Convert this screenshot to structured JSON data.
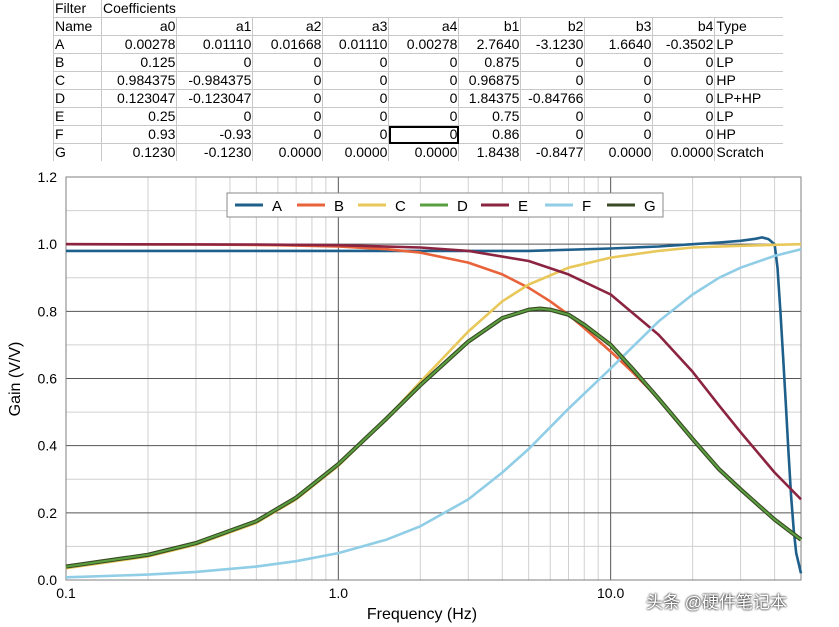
{
  "table": {
    "header_row1": [
      "Filter",
      "Coefficients",
      "",
      "",
      "",
      "",
      "",
      "",
      "",
      "",
      ""
    ],
    "header_row2": [
      "Name",
      "a0",
      "a1",
      "a2",
      "a3",
      "a4",
      "b1",
      "b2",
      "b3",
      "b4",
      "Type"
    ],
    "rows": [
      [
        "A",
        "0.00278",
        "0.01110",
        "0.01668",
        "0.01110",
        "0.00278",
        "2.7640",
        "-3.1230",
        "1.6640",
        "-0.3502",
        "LP"
      ],
      [
        "B",
        "0.125",
        "0",
        "0",
        "0",
        "0",
        "0.875",
        "0",
        "0",
        "0",
        "LP"
      ],
      [
        "C",
        "0.984375",
        "-0.984375",
        "0",
        "0",
        "0",
        "0.96875",
        "0",
        "0",
        "0",
        "HP"
      ],
      [
        "D",
        "0.123047",
        "-0.123047",
        "0",
        "0",
        "0",
        "1.84375",
        "-0.84766",
        "0",
        "0",
        "LP+HP"
      ],
      [
        "E",
        "0.25",
        "0",
        "0",
        "0",
        "0",
        "0.75",
        "0",
        "0",
        "0",
        "LP"
      ],
      [
        "F",
        "0.93",
        "-0.93",
        "0",
        "0",
        "0",
        "0.86",
        "0",
        "0",
        "0",
        "HP"
      ],
      [
        "G",
        "0.1230",
        "-0.1230",
        "0.0000",
        "0.0000",
        "0.0000",
        "1.8438",
        "-0.8477",
        "0.0000",
        "0.0000",
        "Scratch"
      ]
    ]
  },
  "chart_data": {
    "type": "line",
    "xlabel": "Frequency (Hz)",
    "ylabel": "Gain (V/V)",
    "xscale": "log",
    "xlim": [
      0.1,
      50
    ],
    "ylim": [
      0,
      1.2
    ],
    "x_ticks": [
      "0.1",
      "1.0",
      "10.0"
    ],
    "y_ticks": [
      "0.0",
      "0.2",
      "0.4",
      "0.6",
      "0.8",
      "1.0",
      "1.2"
    ],
    "grid": true,
    "legend_position": "top-center",
    "series": [
      {
        "name": "A",
        "color": "#1f5f8b",
        "x": [
          0.1,
          0.5,
          1,
          2,
          5,
          10,
          15,
          20,
          25,
          30,
          34,
          36,
          38,
          40,
          41,
          42,
          43,
          44,
          45,
          46,
          47,
          48,
          50
        ],
        "y": [
          0.98,
          0.98,
          0.98,
          0.98,
          0.98,
          0.987,
          0.993,
          1.0,
          1.005,
          1.01,
          1.016,
          1.02,
          1.015,
          1.0,
          0.93,
          0.8,
          0.66,
          0.52,
          0.38,
          0.25,
          0.15,
          0.08,
          0.02
        ]
      },
      {
        "name": "B",
        "color": "#e8623a",
        "x": [
          0.1,
          0.3,
          0.6,
          1,
          1.5,
          2,
          3,
          4,
          5,
          6,
          7,
          8,
          10,
          12,
          15,
          20,
          25,
          30,
          40,
          50
        ],
        "y": [
          1.0,
          0.999,
          0.997,
          0.993,
          0.985,
          0.975,
          0.945,
          0.91,
          0.87,
          0.83,
          0.79,
          0.75,
          0.68,
          0.62,
          0.54,
          0.42,
          0.33,
          0.27,
          0.18,
          0.12
        ]
      },
      {
        "name": "C",
        "color": "#e8c85a",
        "x": [
          0.1,
          0.2,
          0.3,
          0.5,
          0.7,
          1,
          1.5,
          2,
          3,
          4,
          5,
          7,
          10,
          15,
          20,
          30,
          50
        ],
        "y": [
          0.035,
          0.07,
          0.105,
          0.17,
          0.24,
          0.34,
          0.48,
          0.59,
          0.74,
          0.83,
          0.88,
          0.93,
          0.96,
          0.98,
          0.99,
          0.995,
          1.0
        ]
      },
      {
        "name": "D",
        "color": "#5aa040",
        "x": [
          0.1,
          0.2,
          0.3,
          0.5,
          0.7,
          1,
          1.5,
          2,
          3,
          4,
          5,
          5.5,
          6,
          7,
          8,
          10,
          12,
          15,
          20,
          25,
          30,
          40,
          50
        ],
        "y": [
          0.04,
          0.075,
          0.11,
          0.175,
          0.245,
          0.345,
          0.48,
          0.58,
          0.71,
          0.78,
          0.805,
          0.808,
          0.805,
          0.79,
          0.76,
          0.7,
          0.63,
          0.54,
          0.42,
          0.33,
          0.27,
          0.18,
          0.12
        ]
      },
      {
        "name": "E",
        "color": "#8b2440",
        "x": [
          0.1,
          0.5,
          1,
          2,
          3,
          5,
          7,
          10,
          15,
          20,
          25,
          30,
          40,
          50
        ],
        "y": [
          1.0,
          0.999,
          0.997,
          0.99,
          0.98,
          0.95,
          0.91,
          0.85,
          0.73,
          0.62,
          0.52,
          0.44,
          0.32,
          0.24
        ]
      },
      {
        "name": "F",
        "color": "#90cde6",
        "x": [
          0.1,
          0.2,
          0.3,
          0.5,
          0.7,
          1,
          1.5,
          2,
          3,
          4,
          5,
          7,
          10,
          15,
          20,
          25,
          30,
          40,
          50
        ],
        "y": [
          0.008,
          0.016,
          0.024,
          0.04,
          0.056,
          0.08,
          0.12,
          0.16,
          0.24,
          0.32,
          0.39,
          0.51,
          0.63,
          0.77,
          0.85,
          0.9,
          0.93,
          0.965,
          0.985
        ]
      },
      {
        "name": "G",
        "color": "#3a4a24",
        "x": [
          0.1,
          0.2,
          0.3,
          0.5,
          0.7,
          1,
          1.5,
          2,
          3,
          4,
          5,
          5.5,
          6,
          7,
          8,
          10,
          12,
          15,
          20,
          25,
          30,
          40,
          50
        ],
        "y": [
          0.04,
          0.075,
          0.11,
          0.175,
          0.245,
          0.345,
          0.48,
          0.58,
          0.71,
          0.78,
          0.805,
          0.808,
          0.805,
          0.79,
          0.76,
          0.7,
          0.63,
          0.54,
          0.42,
          0.33,
          0.27,
          0.18,
          0.12
        ]
      }
    ]
  },
  "watermark": "头条 @硬件笔记本"
}
